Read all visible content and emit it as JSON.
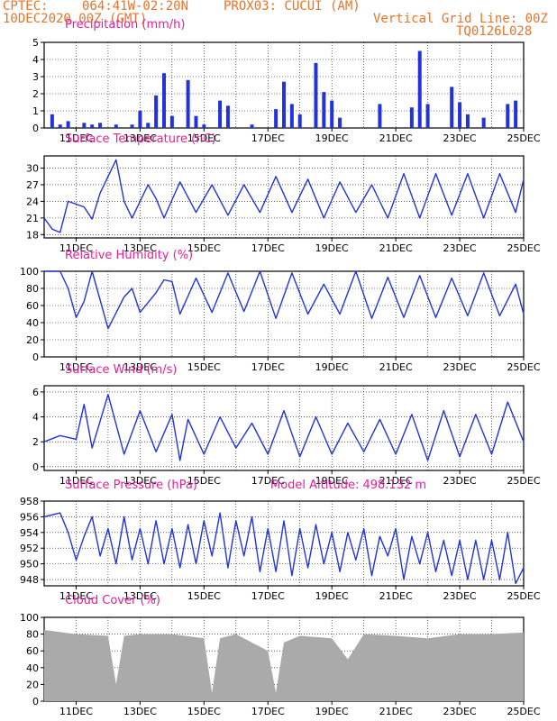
{
  "header": {
    "source": "CPTEC:",
    "coords": "064:41W-02:20N",
    "station": "PROX03: CUCUI (AM)",
    "date": "10DEC2020 00Z (GMT)",
    "grid_note": "Vertical Grid Line: 00Z",
    "code": "TQ0126L028"
  },
  "colors": {
    "header": "#e8742a",
    "title": "#e0209a",
    "line": "#2233dd",
    "cloud": "#aaaaaa",
    "grid": "#000000"
  },
  "x_axis": {
    "start": "2020-12-10 00Z",
    "end": "2020-12-25 00Z",
    "tick_labels": [
      "11DEC",
      "13DEC",
      "15DEC",
      "17DEC",
      "19DEC",
      "21DEC",
      "23DEC",
      "25DEC"
    ]
  },
  "chart_data": [
    {
      "id": "precip",
      "type": "bar",
      "title": "Precipitation (mm/h)",
      "ylim": [
        0,
        5
      ],
      "yticks": [
        0,
        1,
        2,
        3,
        4,
        5
      ],
      "x": [
        "10DEC 06Z",
        "10DEC 12Z",
        "10DEC 18Z",
        "11DEC 06Z",
        "11DEC 12Z",
        "11DEC 18Z",
        "12DEC 06Z",
        "12DEC 18Z",
        "13DEC 00Z",
        "13DEC 06Z",
        "13DEC 12Z",
        "13DEC 18Z",
        "14DEC 00Z",
        "14DEC 12Z",
        "14DEC 18Z",
        "15DEC 00Z",
        "15DEC 12Z",
        "15DEC 18Z",
        "16DEC 12Z",
        "17DEC 06Z",
        "17DEC 12Z",
        "17DEC 18Z",
        "18DEC 00Z",
        "18DEC 12Z",
        "18DEC 18Z",
        "19DEC 00Z",
        "19DEC 06Z",
        "20DEC 12Z",
        "21DEC 12Z",
        "21DEC 18Z",
        "22DEC 00Z",
        "22DEC 18Z",
        "23DEC 00Z",
        "23DEC 06Z",
        "23DEC 18Z",
        "24DEC 12Z",
        "24DEC 18Z"
      ],
      "values": [
        0.8,
        0.2,
        0.4,
        0.3,
        0.2,
        0.3,
        0.2,
        0.2,
        1.0,
        0.3,
        1.9,
        3.2,
        0.7,
        2.8,
        0.7,
        0.2,
        1.6,
        1.3,
        0.2,
        1.1,
        2.7,
        1.4,
        0.8,
        3.8,
        2.1,
        1.6,
        0.6,
        1.4,
        1.2,
        4.5,
        1.4,
        2.4,
        1.5,
        0.8,
        0.6,
        1.4,
        1.6
      ]
    },
    {
      "id": "temp",
      "type": "line",
      "title": "Surface Temperature (nC)",
      "ylim": [
        17.4,
        32.2
      ],
      "yticks": [
        18,
        21,
        24,
        27,
        30
      ],
      "series": [
        {
          "x": [
            "10DEC 00Z",
            "10DEC 06Z",
            "10DEC 12Z",
            "10DEC 18Z",
            "11DEC 06Z",
            "11DEC 12Z",
            "11DEC 18Z",
            "12DEC 06Z",
            "12DEC 12Z",
            "12DEC 18Z",
            "13DEC 06Z",
            "13DEC 12Z",
            "13DEC 18Z",
            "14DEC 06Z",
            "14DEC 18Z",
            "15DEC 06Z",
            "15DEC 18Z",
            "16DEC 06Z",
            "16DEC 18Z",
            "17DEC 06Z",
            "17DEC 18Z",
            "18DEC 06Z",
            "18DEC 18Z",
            "19DEC 06Z",
            "19DEC 18Z",
            "20DEC 06Z",
            "20DEC 18Z",
            "21DEC 06Z",
            "21DEC 18Z",
            "22DEC 06Z",
            "22DEC 18Z",
            "23DEC 06Z",
            "23DEC 18Z",
            "24DEC 06Z",
            "24DEC 18Z",
            "25DEC 00Z"
          ],
          "values": [
            21.0,
            19.0,
            18.4,
            24.0,
            23.0,
            20.8,
            25.5,
            31.5,
            24.0,
            21.0,
            27.0,
            24.5,
            21.0,
            27.5,
            22.0,
            27.0,
            21.5,
            27.0,
            22.0,
            28.5,
            22.0,
            28.0,
            21.0,
            27.5,
            22.0,
            27.0,
            21.0,
            29.0,
            21.0,
            29.0,
            21.5,
            29.0,
            21.0,
            29.0,
            22.0,
            28.0
          ]
        }
      ]
    },
    {
      "id": "rh",
      "type": "line",
      "title": "Relative Humidity (%)",
      "ylim": [
        0,
        100
      ],
      "yticks": [
        0,
        20,
        40,
        60,
        80,
        100
      ],
      "series": [
        {
          "x": [
            "10DEC 00Z",
            "10DEC 12Z",
            "10DEC 18Z",
            "11DEC 00Z",
            "11DEC 06Z",
            "11DEC 12Z",
            "12DEC 00Z",
            "12DEC 12Z",
            "12DEC 18Z",
            "13DEC 00Z",
            "13DEC 12Z",
            "13DEC 18Z",
            "14DEC 00Z",
            "14DEC 06Z",
            "14DEC 18Z",
            "15DEC 06Z",
            "15DEC 18Z",
            "16DEC 06Z",
            "16DEC 18Z",
            "17DEC 06Z",
            "17DEC 18Z",
            "18DEC 06Z",
            "18DEC 18Z",
            "19DEC 06Z",
            "19DEC 18Z",
            "20DEC 06Z",
            "20DEC 18Z",
            "21DEC 06Z",
            "21DEC 18Z",
            "22DEC 06Z",
            "22DEC 18Z",
            "23DEC 06Z",
            "23DEC 18Z",
            "24DEC 06Z",
            "24DEC 18Z",
            "25DEC 00Z"
          ],
          "values": [
            100,
            100,
            80,
            46,
            65,
            100,
            33,
            70,
            80,
            52,
            75,
            90,
            88,
            50,
            92,
            52,
            98,
            53,
            100,
            45,
            98,
            50,
            85,
            50,
            100,
            45,
            93,
            46,
            95,
            46,
            92,
            48,
            98,
            48,
            85,
            50
          ]
        }
      ]
    },
    {
      "id": "wind",
      "type": "line",
      "title": "Surface Wind (m/s)",
      "ylim": [
        -0.3,
        6.5
      ],
      "yticks": [
        0,
        2,
        4,
        6
      ],
      "series": [
        {
          "x": [
            "10DEC 00Z",
            "10DEC 12Z",
            "11DEC 00Z",
            "11DEC 06Z",
            "11DEC 12Z",
            "12DEC 00Z",
            "12DEC 12Z",
            "13DEC 00Z",
            "13DEC 12Z",
            "14DEC 00Z",
            "14DEC 06Z",
            "14DEC 12Z",
            "15DEC 00Z",
            "15DEC 12Z",
            "16DEC 00Z",
            "16DEC 12Z",
            "17DEC 00Z",
            "17DEC 12Z",
            "18DEC 00Z",
            "18DEC 12Z",
            "19DEC 00Z",
            "19DEC 12Z",
            "20DEC 00Z",
            "20DEC 12Z",
            "21DEC 00Z",
            "21DEC 12Z",
            "22DEC 00Z",
            "22DEC 12Z",
            "23DEC 00Z",
            "23DEC 12Z",
            "24DEC 00Z",
            "24DEC 12Z",
            "25DEC 00Z"
          ],
          "values": [
            2.0,
            2.5,
            2.2,
            5.0,
            1.5,
            5.8,
            1.0,
            4.5,
            1.2,
            4.2,
            0.5,
            3.8,
            1.0,
            4.0,
            1.5,
            3.5,
            1.0,
            4.5,
            0.8,
            4.0,
            1.0,
            3.5,
            1.2,
            3.8,
            1.0,
            4.2,
            0.5,
            4.5,
            0.8,
            4.2,
            1.0,
            5.2,
            2.0
          ]
        }
      ]
    },
    {
      "id": "pressure",
      "type": "line",
      "title": "Surface Pressure (hPa)",
      "annotation": "Model Altitude: 498.132 m",
      "ylim": [
        947.2,
        958.0
      ],
      "yticks": [
        948,
        950,
        952,
        954,
        956,
        958
      ],
      "series": [
        {
          "x": [
            "10DEC 00Z",
            "10DEC 12Z",
            "10DEC 18Z",
            "11DEC 00Z",
            "11DEC 06Z",
            "11DEC 12Z",
            "11DEC 18Z",
            "12DEC 00Z",
            "12DEC 06Z",
            "12DEC 12Z",
            "12DEC 18Z",
            "13DEC 00Z",
            "13DEC 06Z",
            "13DEC 12Z",
            "13DEC 18Z",
            "14DEC 00Z",
            "14DEC 06Z",
            "14DEC 12Z",
            "14DEC 18Z",
            "15DEC 00Z",
            "15DEC 06Z",
            "15DEC 12Z",
            "15DEC 18Z",
            "16DEC 00Z",
            "16DEC 06Z",
            "16DEC 12Z",
            "16DEC 18Z",
            "17DEC 00Z",
            "17DEC 06Z",
            "17DEC 12Z",
            "17DEC 18Z",
            "18DEC 00Z",
            "18DEC 06Z",
            "18DEC 12Z",
            "18DEC 18Z",
            "19DEC 00Z",
            "19DEC 06Z",
            "19DEC 12Z",
            "19DEC 18Z",
            "20DEC 00Z",
            "20DEC 06Z",
            "20DEC 12Z",
            "20DEC 18Z",
            "21DEC 00Z",
            "21DEC 06Z",
            "21DEC 12Z",
            "21DEC 18Z",
            "22DEC 00Z",
            "22DEC 06Z",
            "22DEC 12Z",
            "22DEC 18Z",
            "23DEC 00Z",
            "23DEC 06Z",
            "23DEC 12Z",
            "23DEC 18Z",
            "24DEC 00Z",
            "24DEC 06Z",
            "24DEC 12Z",
            "24DEC 18Z",
            "25DEC 00Z"
          ],
          "values": [
            956.0,
            956.5,
            954.0,
            950.5,
            953.5,
            956.0,
            951.0,
            954.5,
            950.0,
            956.0,
            950.5,
            954.5,
            950.0,
            955.5,
            950.0,
            954.5,
            949.5,
            955.0,
            950.0,
            955.5,
            951.0,
            956.5,
            949.5,
            955.5,
            951.0,
            956.0,
            949.0,
            954.5,
            949.0,
            955.5,
            948.5,
            954.5,
            949.5,
            955.0,
            950.0,
            954.0,
            949.0,
            954.0,
            950.5,
            954.5,
            948.5,
            953.5,
            951.0,
            954.5,
            948.0,
            953.5,
            950.0,
            954.0,
            949.0,
            953.0,
            948.5,
            953.0,
            948.0,
            953.0,
            948.0,
            953.0,
            948.0,
            954.0,
            947.5,
            949.5
          ]
        }
      ]
    },
    {
      "id": "cloud",
      "type": "area",
      "title": "Cloud Cover (%)",
      "ylim": [
        0,
        100
      ],
      "yticks": [
        0,
        20,
        40,
        60,
        80,
        100
      ],
      "series": [
        {
          "x": [
            "10DEC 00Z",
            "11DEC 00Z",
            "12DEC 00Z",
            "12DEC 06Z",
            "12DEC 12Z",
            "13DEC 00Z",
            "14DEC 00Z",
            "15DEC 00Z",
            "15DEC 06Z",
            "15DEC 12Z",
            "16DEC 00Z",
            "17DEC 00Z",
            "17DEC 06Z",
            "17DEC 12Z",
            "18DEC 00Z",
            "19DEC 00Z",
            "19DEC 12Z",
            "20DEC 00Z",
            "21DEC 00Z",
            "22DEC 00Z",
            "23DEC 00Z",
            "24DEC 00Z",
            "25DEC 00Z"
          ],
          "values": [
            85,
            80,
            78,
            20,
            78,
            80,
            80,
            75,
            10,
            75,
            80,
            60,
            10,
            70,
            78,
            75,
            50,
            80,
            78,
            75,
            80,
            80,
            82
          ]
        }
      ]
    }
  ]
}
